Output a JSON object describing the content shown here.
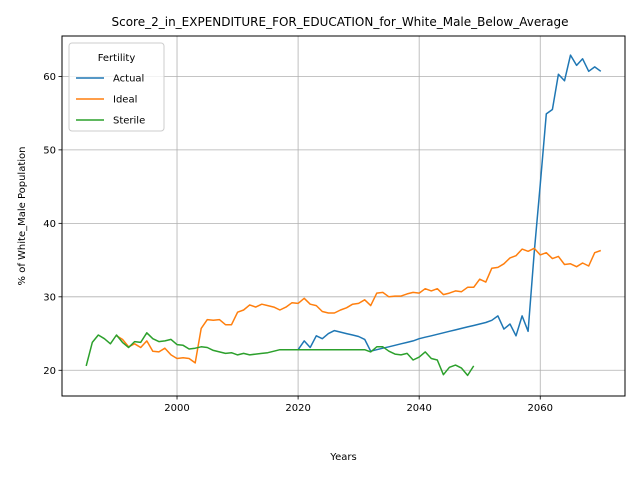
{
  "chart_data": {
    "type": "line",
    "title": "Score_2_in_EXPENDITURE_FOR_EDUCATION_for_White_Male_Below_Average",
    "xlabel": "Years",
    "ylabel": "% of White_Male Population",
    "xlim": [
      1981,
      2074
    ],
    "ylim": [
      16.5,
      65.5
    ],
    "xticks": [
      2000,
      2020,
      2040,
      2060
    ],
    "yticks": [
      20,
      30,
      40,
      50,
      60
    ],
    "grid": true,
    "legend": {
      "title": "Fertility",
      "placement": "top-left"
    },
    "series": [
      {
        "name": "Actual",
        "color": "#1f77b4",
        "x": [
          2020,
          2021,
          2022,
          2023,
          2024,
          2025,
          2026,
          2027,
          2028,
          2029,
          2030,
          2031,
          2032,
          2033,
          2034,
          2035,
          2036,
          2037,
          2038,
          2039,
          2040,
          2041,
          2042,
          2043,
          2044,
          2045,
          2046,
          2047,
          2048,
          2049,
          2050,
          2051,
          2052,
          2053,
          2054,
          2055,
          2056,
          2057,
          2058,
          2059,
          2060,
          2061,
          2062,
          2063,
          2064,
          2065,
          2066,
          2067,
          2068,
          2069,
          2070
        ],
        "y": [
          22.8,
          24.0,
          23.1,
          24.7,
          24.3,
          25.0,
          25.4,
          25.2,
          25.0,
          24.8,
          24.6,
          24.2,
          22.6,
          22.8,
          23.0,
          23.2,
          23.4,
          23.6,
          23.8,
          24.0,
          24.3,
          24.5,
          24.7,
          24.9,
          25.1,
          25.3,
          25.5,
          25.7,
          25.9,
          26.1,
          26.3,
          26.5,
          26.8,
          27.4,
          25.6,
          26.3,
          24.7,
          27.4,
          25.3,
          36.0,
          45.2,
          54.9,
          55.5,
          60.3,
          59.4,
          62.9,
          61.5,
          62.4,
          60.7,
          61.3,
          60.7
        ]
      },
      {
        "name": "Ideal",
        "color": "#ff7f0e",
        "x": [
          1990,
          1991,
          1992,
          1993,
          1994,
          1995,
          1996,
          1997,
          1998,
          1999,
          2000,
          2001,
          2002,
          2003,
          2004,
          2005,
          2006,
          2007,
          2008,
          2009,
          2010,
          2011,
          2012,
          2013,
          2014,
          2015,
          2016,
          2017,
          2018,
          2019,
          2020,
          2021,
          2022,
          2023,
          2024,
          2025,
          2026,
          2027,
          2028,
          2029,
          2030,
          2031,
          2032,
          2033,
          2034,
          2035,
          2036,
          2037,
          2038,
          2039,
          2040,
          2041,
          2042,
          2043,
          2044,
          2045,
          2046,
          2047,
          2048,
          2049,
          2050,
          2051,
          2052,
          2053,
          2054,
          2055,
          2056,
          2057,
          2058,
          2059,
          2060,
          2061,
          2062,
          2063,
          2064,
          2065,
          2066,
          2067,
          2068,
          2069,
          2070
        ],
        "y": [
          24.7,
          24.2,
          23.2,
          23.6,
          23.1,
          24.0,
          22.6,
          22.5,
          23.0,
          22.1,
          21.6,
          21.7,
          21.6,
          21.0,
          25.7,
          26.9,
          26.8,
          26.9,
          26.2,
          26.2,
          27.9,
          28.2,
          28.9,
          28.6,
          29.0,
          28.8,
          28.6,
          28.2,
          28.6,
          29.2,
          29.1,
          29.8,
          29.0,
          28.8,
          28.0,
          27.8,
          27.8,
          28.2,
          28.5,
          29.0,
          29.1,
          29.6,
          28.8,
          30.5,
          30.6,
          30.0,
          30.1,
          30.1,
          30.4,
          30.6,
          30.5,
          31.1,
          30.8,
          31.1,
          30.3,
          30.5,
          30.8,
          30.7,
          31.3,
          31.3,
          32.4,
          32.0,
          33.9,
          34.0,
          34.5,
          35.3,
          35.6,
          36.5,
          36.2,
          36.6,
          35.7,
          36.0,
          35.2,
          35.5,
          34.4,
          34.5,
          34.1,
          34.6,
          34.2,
          36.0,
          36.3
        ]
      },
      {
        "name": "Sterile",
        "color": "#2ca02c",
        "x": [
          1985,
          1986,
          1987,
          1988,
          1989,
          1990,
          1991,
          1992,
          1993,
          1994,
          1995,
          1996,
          1997,
          1998,
          1999,
          2000,
          2001,
          2002,
          2003,
          2004,
          2005,
          2006,
          2007,
          2008,
          2009,
          2010,
          2011,
          2012,
          2013,
          2014,
          2015,
          2016,
          2017,
          2018,
          2019,
          2020,
          2021,
          2022,
          2023,
          2024,
          2025,
          2026,
          2027,
          2028,
          2029,
          2030,
          2031,
          2032,
          2033,
          2034,
          2035,
          2036,
          2037,
          2038,
          2039,
          2040,
          2041,
          2042,
          2043,
          2044,
          2045,
          2046,
          2047,
          2048,
          2049
        ],
        "y": [
          20.6,
          23.8,
          24.8,
          24.3,
          23.6,
          24.8,
          23.8,
          23.1,
          23.9,
          23.8,
          25.1,
          24.3,
          23.9,
          24.0,
          24.2,
          23.5,
          23.4,
          22.9,
          23.0,
          23.2,
          23.1,
          22.7,
          22.5,
          22.3,
          22.4,
          22.1,
          22.3,
          22.1,
          22.2,
          22.3,
          22.4,
          22.6,
          22.8,
          22.8,
          22.8,
          22.8,
          22.8,
          22.8,
          22.8,
          22.8,
          22.8,
          22.8,
          22.8,
          22.8,
          22.8,
          22.8,
          22.8,
          22.5,
          23.2,
          23.2,
          22.6,
          22.2,
          22.1,
          22.3,
          21.4,
          21.8,
          22.5,
          21.6,
          21.4,
          19.4,
          20.4,
          20.7,
          20.3,
          19.3,
          20.6
        ]
      }
    ]
  }
}
